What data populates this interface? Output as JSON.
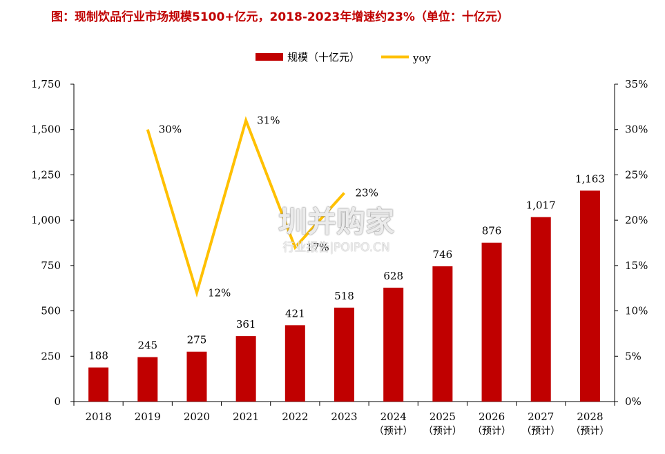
{
  "title": "图：现制饮品行业市场规模5100+亿元，2018-2023年增速约23%（单位：十亿元）",
  "watermark": {
    "main": "圳并购家",
    "sub": "行业报告|POIPO.CN"
  },
  "colors": {
    "bar": "#c00000",
    "line": "#ffc000",
    "title": "#c00000",
    "axis": "#000000"
  },
  "chart_data": {
    "type": "bar",
    "title": "图：现制饮品行业市场规模5100+亿元，2018-2023年增速约23%（单位：十亿元）",
    "categories": [
      "2018",
      "2019",
      "2020",
      "2021",
      "2022",
      "2023",
      "2024",
      "2025",
      "2026",
      "2027",
      "2028"
    ],
    "category_sublabels": [
      "",
      "",
      "",
      "",
      "",
      "",
      "（预计）",
      "（预计）",
      "（预计）",
      "（预计）",
      "（预计）"
    ],
    "series": [
      {
        "name": "规模（十亿元）",
        "type": "bar",
        "axis": "left",
        "values": [
          188,
          245,
          275,
          361,
          421,
          518,
          628,
          746,
          876,
          1017,
          1163
        ],
        "labels": [
          "188",
          "245",
          "275",
          "361",
          "421",
          "518",
          "628",
          "746",
          "876",
          "1,017",
          "1,163"
        ]
      },
      {
        "name": "yoy",
        "type": "line",
        "axis": "right",
        "values": [
          null,
          30,
          12,
          31,
          17,
          23,
          null,
          null,
          null,
          null,
          null
        ],
        "labels": [
          null,
          "30%",
          "12%",
          "31%",
          "17%",
          "23%",
          null,
          null,
          null,
          null,
          null
        ]
      }
    ],
    "y_left": {
      "min": 0,
      "max": 1750,
      "ticks": [
        0,
        250,
        500,
        750,
        1000,
        1250,
        1500,
        1750
      ],
      "tick_labels": [
        "0",
        "250",
        "500",
        "750",
        "1,000",
        "1,250",
        "1,500",
        "1,750"
      ]
    },
    "y_right": {
      "min": 0,
      "max": 35,
      "ticks": [
        0,
        5,
        10,
        15,
        20,
        25,
        30,
        35
      ],
      "tick_labels": [
        "0%",
        "5%",
        "10%",
        "15%",
        "20%",
        "25%",
        "30%",
        "35%"
      ]
    },
    "legend": {
      "position": "top-center",
      "entries": [
        "规模（十亿元）",
        "yoy"
      ]
    },
    "grid": false
  }
}
